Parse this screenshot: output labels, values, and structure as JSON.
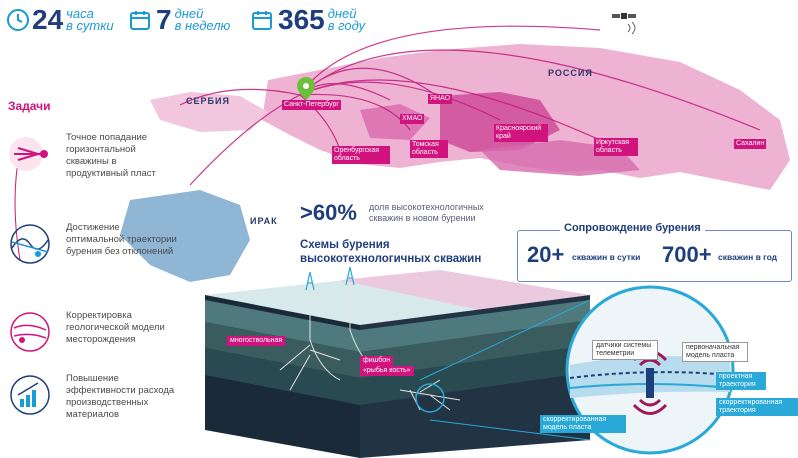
{
  "stats": [
    {
      "num": "24",
      "top": "часа",
      "bottom": "в сутки",
      "color": "#1a9ad6",
      "icon": "clock-icon"
    },
    {
      "num": "7",
      "top": "дней",
      "bottom": "в неделю",
      "color": "#1a9ad6",
      "icon": "calendar-icon"
    },
    {
      "num": "365",
      "top": "дней",
      "bottom": "в году",
      "color": "#1a9ad6",
      "icon": "calendar-icon"
    }
  ],
  "tasks": {
    "title": "Задачи",
    "items": [
      {
        "text": "Точное попадание горизонтальной скважины в продуктивный пласт",
        "icon": "target-drill-icon"
      },
      {
        "text": "Достижение оптимальной траектории бурения без отклонений",
        "icon": "trajectory-icon"
      },
      {
        "text": "Корректировка геологической модели месторождения",
        "icon": "geology-model-icon"
      },
      {
        "text": "Повышение эффективности расхода производственных материалов",
        "icon": "efficiency-chart-icon"
      }
    ]
  },
  "map": {
    "countries": {
      "russia": "РОССИЯ",
      "serbia": "СЕРБИЯ",
      "iraq": "ИРАК"
    },
    "labels": {
      "spb": "Санкт-Петербург",
      "yanao": "ЯНАО",
      "hmao": "ХМАО",
      "orenburg": "Оренбургская область",
      "tomsk": "Томская область",
      "krasnoyarsk": "Красноярский край",
      "irkutsk": "Иркутская область",
      "sakhalin": "Сахалин"
    }
  },
  "stats_block": {
    "percent": ">60%",
    "percent_desc": "доля высокотехнологичных скважин в новом бурении",
    "scheme_title": "Схемы бурения высокотехнологичных скважин"
  },
  "support": {
    "title": "Сопровождение бурения",
    "a_num": "20+",
    "a_label": "скважин в сутки",
    "b_num": "700+",
    "b_label": "скважин в год"
  },
  "diagram": {
    "multi": "многоствольная",
    "fishbone": "фишбон",
    "fishbone_sub": "«рыбья кость»",
    "telemetry": "датчики системы телеметрии",
    "initial_model": "первоначальная модель пласта",
    "design_traj": "проектная траектория",
    "corrected_model": "скорректированная модель пласта",
    "corrected_traj": "скорректированная траектория"
  },
  "colors": {
    "accent": "#d1137e",
    "navy": "#1f3e7c",
    "blue": "#1a9ad6",
    "map": "#e9a6cc"
  }
}
